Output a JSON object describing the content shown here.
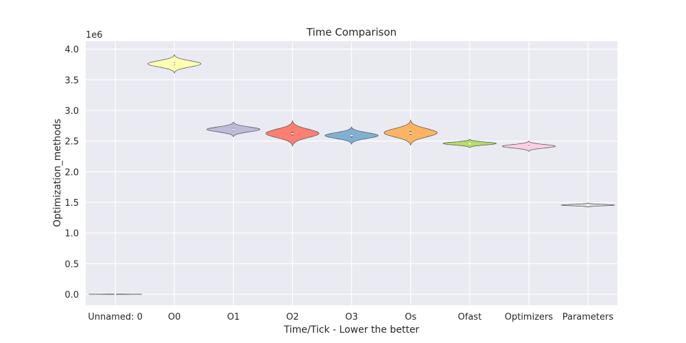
{
  "chart_data": {
    "type": "violin",
    "title": "Time Comparison",
    "xlabel": "Time/Tick - Lower the better",
    "ylabel": "Optimization_methods",
    "y_offset_label": "1e6",
    "ylim": [
      -0.18,
      4.13
    ],
    "y_ticks": [
      {
        "value": 0.0,
        "label": "0.0"
      },
      {
        "value": 0.5,
        "label": "0.5"
      },
      {
        "value": 1.0,
        "label": "1.0"
      },
      {
        "value": 1.5,
        "label": "1.5"
      },
      {
        "value": 2.0,
        "label": "2.0"
      },
      {
        "value": 2.5,
        "label": "2.5"
      },
      {
        "value": 3.0,
        "label": "3.0"
      },
      {
        "value": 3.5,
        "label": "3.5"
      },
      {
        "value": 4.0,
        "label": "4.0"
      }
    ],
    "categories": [
      "Unnamed: 0",
      "O0",
      "O1",
      "O2",
      "O3",
      "Os",
      "Ofast",
      "Optimizers",
      "Parameters"
    ],
    "grid": true,
    "violins": [
      {
        "category": "Unnamed: 0",
        "color": "#8dd3c7",
        "low": -0.004,
        "high": 0.004,
        "median": 0.0,
        "q1": -0.001,
        "q3": 0.001
      },
      {
        "category": "O0",
        "color": "#ffffb3",
        "low": 3.61,
        "high": 3.91,
        "median": 3.76,
        "q1": 3.74,
        "q3": 3.78
      },
      {
        "category": "O1",
        "color": "#bebada",
        "low": 2.57,
        "high": 2.81,
        "median": 2.69,
        "q1": 2.67,
        "q3": 2.71
      },
      {
        "category": "O2",
        "color": "#fb8072",
        "low": 2.42,
        "high": 2.83,
        "median": 2.62,
        "q1": 2.59,
        "q3": 2.65
      },
      {
        "category": "O3",
        "color": "#80b1d3",
        "low": 2.45,
        "high": 2.73,
        "median": 2.59,
        "q1": 2.56,
        "q3": 2.61
      },
      {
        "category": "Os",
        "color": "#fdb462",
        "low": 2.43,
        "high": 2.84,
        "median": 2.63,
        "q1": 2.6,
        "q3": 2.66
      },
      {
        "category": "Ofast",
        "color": "#b3de69",
        "low": 2.39,
        "high": 2.53,
        "median": 2.46,
        "q1": 2.455,
        "q3": 2.475
      },
      {
        "category": "Optimizers",
        "color": "#fccde5",
        "low": 2.33,
        "high": 2.5,
        "median": 2.41,
        "q1": 2.4,
        "q3": 2.43
      },
      {
        "category": "Parameters",
        "color": "#d9d9d9",
        "low": 1.42,
        "high": 1.49,
        "median": 1.455,
        "q1": 1.45,
        "q3": 1.46
      }
    ],
    "plot_background": "#eaeaf2",
    "grid_color": "#ffffff"
  }
}
